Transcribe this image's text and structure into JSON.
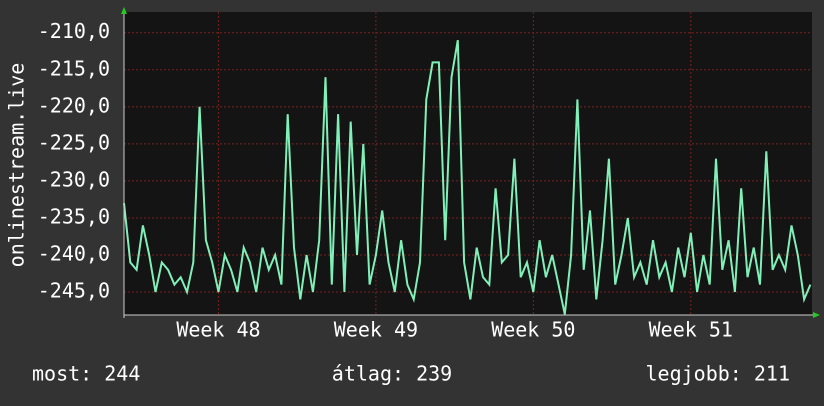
{
  "chart_data": {
    "type": "line",
    "y_label": "onlinestream.live",
    "x": [
      47.4,
      47.44,
      47.48,
      47.52,
      47.56,
      47.6,
      47.64,
      47.68,
      47.72,
      47.76,
      47.8,
      47.84,
      47.88,
      47.92,
      47.96,
      48.0,
      48.04,
      48.08,
      48.12,
      48.16,
      48.2,
      48.24,
      48.28,
      48.32,
      48.36,
      48.4,
      48.44,
      48.48,
      48.52,
      48.56,
      48.6,
      48.64,
      48.68,
      48.72,
      48.76,
      48.8,
      48.84,
      48.88,
      48.92,
      48.96,
      49.0,
      49.04,
      49.08,
      49.12,
      49.16,
      49.2,
      49.24,
      49.28,
      49.32,
      49.36,
      49.4,
      49.44,
      49.48,
      49.52,
      49.56,
      49.6,
      49.64,
      49.68,
      49.72,
      49.76,
      49.8,
      49.84,
      49.88,
      49.92,
      49.96,
      50.0,
      50.04,
      50.08,
      50.12,
      50.16,
      50.2,
      50.24,
      50.28,
      50.32,
      50.36,
      50.4,
      50.44,
      50.48,
      50.52,
      50.56,
      50.6,
      50.64,
      50.68,
      50.72,
      50.76,
      50.8,
      50.84,
      50.88,
      50.92,
      50.96,
      51.0,
      51.04,
      51.08,
      51.12,
      51.16,
      51.2,
      51.24,
      51.28,
      51.32,
      51.36,
      51.4,
      51.44,
      51.48,
      51.52,
      51.56,
      51.6,
      51.64,
      51.68,
      51.72,
      51.76
    ],
    "series": [
      {
        "color": "#80f0b8",
        "values": [
          -233,
          -241,
          -242,
          -236,
          -240,
          -245,
          -241,
          -242,
          -244,
          -243,
          -245,
          -241,
          -220,
          -238,
          -241,
          -245,
          -240,
          -242,
          -245,
          -239,
          -241,
          -245,
          -239,
          -242,
          -240,
          -244,
          -221,
          -239,
          -246,
          -240,
          -245,
          -238,
          -216,
          -244,
          -221,
          -245,
          -222,
          -240,
          -225,
          -244,
          -240,
          -234,
          -241,
          -245,
          -238,
          -244,
          -246,
          -241,
          -219,
          -214,
          -214,
          -238,
          -216,
          -211,
          -241,
          -246,
          -239,
          -243,
          -244,
          -231,
          -241,
          -240,
          -227,
          -243,
          -241,
          -245,
          -238,
          -243,
          -240,
          -244,
          -248,
          -240,
          -219,
          -242,
          -234,
          -246,
          -238,
          -227,
          -244,
          -240,
          -235,
          -243,
          -241,
          -244,
          -238,
          -243,
          -241,
          -245,
          -239,
          -243,
          -237,
          -245,
          -240,
          -244,
          -227,
          -242,
          -238,
          -245,
          -231,
          -243,
          -239,
          -244,
          -226,
          -242,
          -240,
          -242,
          -236,
          -240,
          -246,
          -244
        ]
      }
    ],
    "xlim": [
      47.4,
      51.77
    ],
    "xticks": [
      {
        "value": 48,
        "label": "Week 48"
      },
      {
        "value": 49,
        "label": "Week 49"
      },
      {
        "value": 50,
        "label": "Week 50"
      },
      {
        "value": 51,
        "label": "Week 51"
      }
    ],
    "ylim": [
      -248.1,
      -207.2
    ],
    "yticks": [
      {
        "value": -210,
        "label": "-210,0"
      },
      {
        "value": -215,
        "label": "-215,0"
      },
      {
        "value": -220,
        "label": "-220,0"
      },
      {
        "value": -225,
        "label": "-225,0"
      },
      {
        "value": -230,
        "label": "-230,0"
      },
      {
        "value": -235,
        "label": "-235,0"
      },
      {
        "value": -240,
        "label": "-240,0"
      },
      {
        "value": -245,
        "label": "-245,0"
      }
    ],
    "grid": true,
    "footer": [
      "most: 244",
      "átlag: 239",
      "legjobb: 211"
    ]
  }
}
